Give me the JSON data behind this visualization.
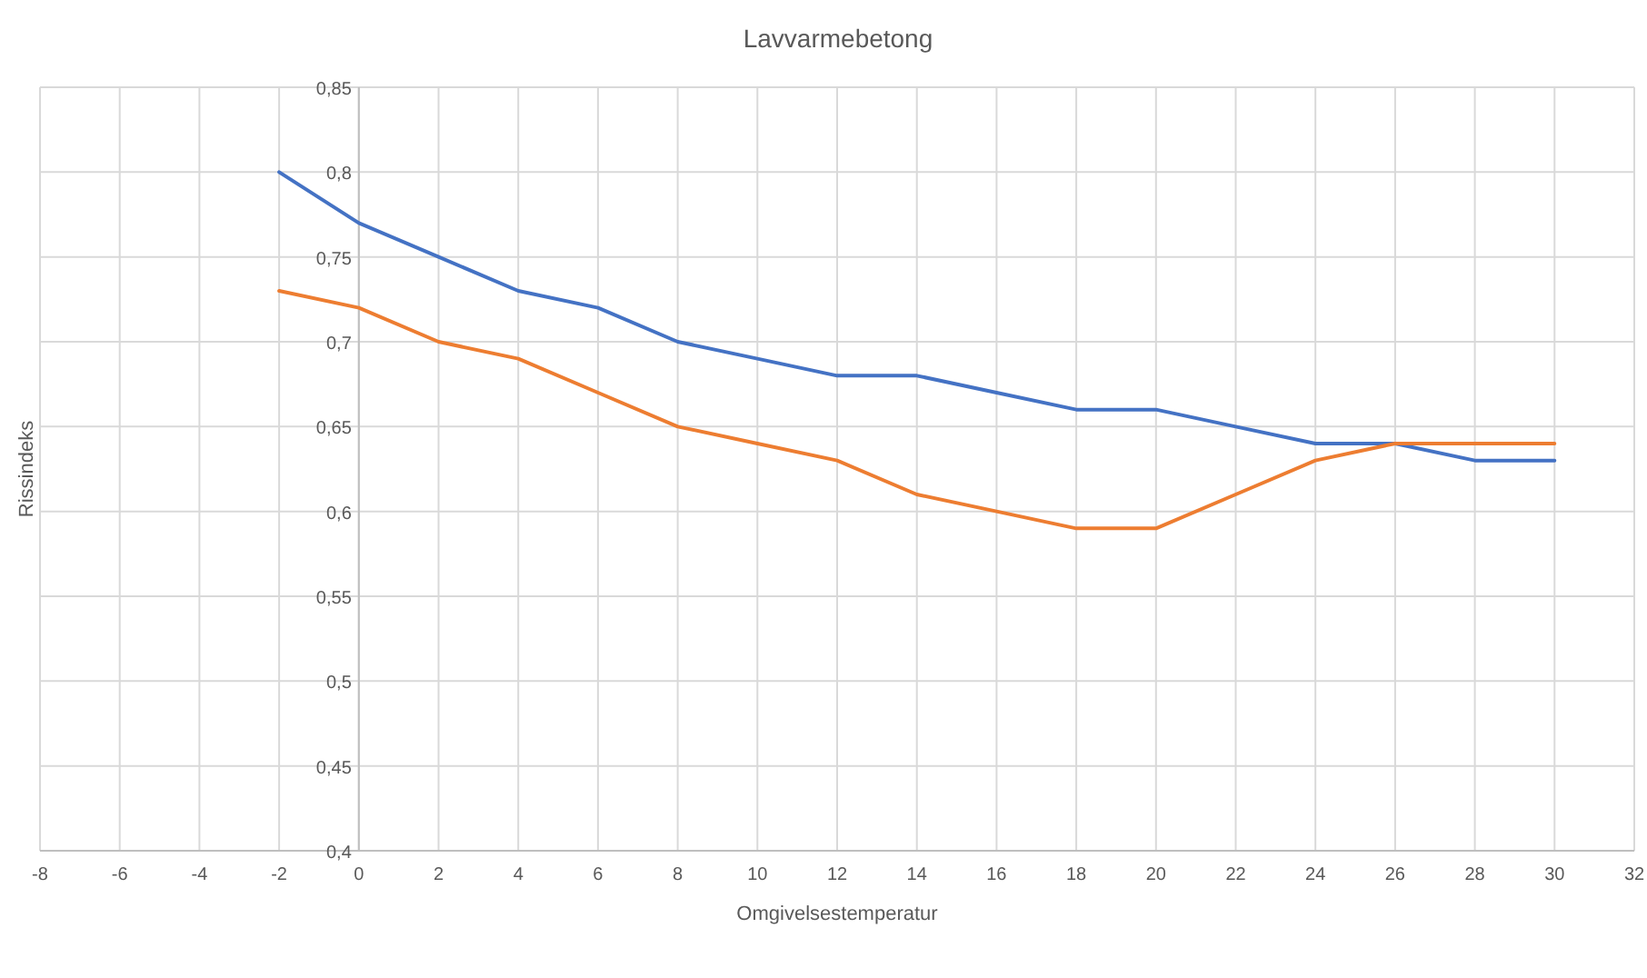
{
  "chart_data": {
    "type": "line",
    "title": "Lavvarmebetong",
    "xlabel": "Omgivelsestemperatur",
    "ylabel": "Rissindeks",
    "x": [
      -2,
      0,
      2,
      4,
      6,
      8,
      10,
      12,
      14,
      16,
      18,
      20,
      22,
      24,
      26,
      28,
      30
    ],
    "series": [
      {
        "color": "#4472c4",
        "values": [
          0.8,
          0.77,
          0.75,
          0.73,
          0.72,
          0.7,
          0.69,
          0.68,
          0.68,
          0.67,
          0.66,
          0.66,
          0.65,
          0.64,
          0.64,
          0.63,
          0.63
        ]
      },
      {
        "color": "#ed7d31",
        "values": [
          0.73,
          0.72,
          0.7,
          0.69,
          0.67,
          0.65,
          0.64,
          0.63,
          0.61,
          0.6,
          0.59,
          0.59,
          0.61,
          0.63,
          0.64,
          0.64,
          0.64
        ]
      }
    ],
    "xlim": [
      -8,
      32
    ],
    "xticks": [
      -8,
      -6,
      -4,
      -2,
      0,
      2,
      4,
      6,
      8,
      10,
      12,
      14,
      16,
      18,
      20,
      22,
      24,
      26,
      28,
      30,
      32
    ],
    "ylim": [
      0.4,
      0.85
    ],
    "yticks": [
      {
        "value": 0.4,
        "label": "0,4"
      },
      {
        "value": 0.45,
        "label": "0,45"
      },
      {
        "value": 0.5,
        "label": "0,5"
      },
      {
        "value": 0.55,
        "label": "0,55"
      },
      {
        "value": 0.6,
        "label": "0,6"
      },
      {
        "value": 0.65,
        "label": "0,65"
      },
      {
        "value": 0.7,
        "label": "0,7"
      },
      {
        "value": 0.75,
        "label": "0,75"
      },
      {
        "value": 0.8,
        "label": "0,8"
      },
      {
        "value": 0.85,
        "label": "0,85"
      }
    ],
    "grid": true,
    "marker": "none",
    "line_style": "solid"
  }
}
